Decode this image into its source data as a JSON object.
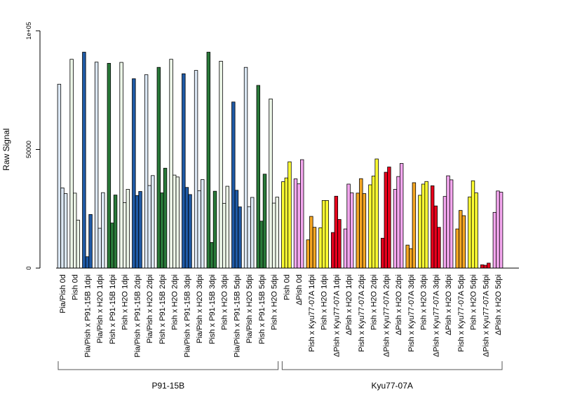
{
  "chart_data": {
    "type": "bar",
    "ylabel": "Raw Signal",
    "ylim": [
      0,
      100000
    ],
    "y_ticks": [
      {
        "value": 0,
        "label": "0"
      },
      {
        "value": 50000,
        "label": "50000"
      },
      {
        "value": 100000,
        "label": "1e+05"
      }
    ],
    "grid": false,
    "legend": "none",
    "categories": [
      {
        "label": "Pia/Pish 0d",
        "values": [
          77500,
          33800,
          31400
        ],
        "colors": [
          "#dce8f5",
          "#dce8f5",
          "#dce8f5"
        ]
      },
      {
        "label": "Pish 0d",
        "values": [
          88000,
          31600,
          20200
        ],
        "colors": [
          "#edf7e8",
          "#edf7e8",
          "#edf7e8"
        ]
      },
      {
        "label": "Pia/Pish x P91-15B 1dpi",
        "values": [
          91000,
          4800,
          22600
        ],
        "colors": [
          "#1f5aa6",
          "#1f5aa6",
          "#1f5aa6"
        ]
      },
      {
        "label": "Pia/Pish x H2O 1dpi",
        "values": [
          86800,
          16800,
          31800
        ],
        "colors": [
          "#dce8f5",
          "#dce8f5",
          "#dce8f5"
        ]
      },
      {
        "label": "Pish x P91-15B 1dpi",
        "values": [
          86300,
          19000,
          30800
        ],
        "colors": [
          "#2a7a3a",
          "#2a7a3a",
          "#2a7a3a"
        ]
      },
      {
        "label": "Pish x H2O 1dpi",
        "values": [
          86700,
          27600,
          33200
        ],
        "colors": [
          "#edf7e8",
          "#edf7e8",
          "#edf7e8"
        ]
      },
      {
        "label": "Pia/Pish x P91-15B 2dpi",
        "values": [
          79800,
          30600,
          32300
        ],
        "colors": [
          "#1f5aa6",
          "#1f5aa6",
          "#1f5aa6"
        ]
      },
      {
        "label": "Pia/Pish x H2O 2dpi",
        "values": [
          81500,
          34800,
          39000
        ],
        "colors": [
          "#dce8f5",
          "#dce8f5",
          "#dce8f5"
        ]
      },
      {
        "label": "Pish x P91-15B 2dpi",
        "values": [
          84600,
          31700,
          42100
        ],
        "colors": [
          "#2a7a3a",
          "#2a7a3a",
          "#2a7a3a"
        ]
      },
      {
        "label": "Pish x H2O 2dpi",
        "values": [
          88000,
          39200,
          38400
        ],
        "colors": [
          "#edf7e8",
          "#edf7e8",
          "#edf7e8"
        ]
      },
      {
        "label": "Pia/Pish x P91-15B 3dpi",
        "values": [
          81900,
          34000,
          31000
        ],
        "colors": [
          "#1f5aa6",
          "#1f5aa6",
          "#1f5aa6"
        ]
      },
      {
        "label": "Pia/Pish x H2O 3dpi",
        "values": [
          83300,
          32600,
          37300
        ],
        "colors": [
          "#dce8f5",
          "#dce8f5",
          "#dce8f5"
        ]
      },
      {
        "label": "Pish x P91-15B 3dpi",
        "values": [
          91000,
          10800,
          32400
        ],
        "colors": [
          "#2a7a3a",
          "#2a7a3a",
          "#2a7a3a"
        ]
      },
      {
        "label": "Pish x H2O 3dpi",
        "values": [
          87200,
          27300,
          34500
        ],
        "colors": [
          "#edf7e8",
          "#edf7e8",
          "#edf7e8"
        ]
      },
      {
        "label": "Pia/Pish x P91-15B 5dpi",
        "values": [
          70000,
          32800,
          25800
        ],
        "colors": [
          "#1f5aa6",
          "#1f5aa6",
          "#1f5aa6"
        ]
      },
      {
        "label": "Pia/Pish x H2O 5dpi",
        "values": [
          84600,
          25900,
          29800
        ],
        "colors": [
          "#dce8f5",
          "#dce8f5",
          "#dce8f5"
        ]
      },
      {
        "label": "Pish x P91-15B 5dpi",
        "values": [
          77000,
          19800,
          39600
        ],
        "colors": [
          "#2a7a3a",
          "#2a7a3a",
          "#2a7a3a"
        ]
      },
      {
        "label": "Pish x H2O 5dpi",
        "values": [
          71300,
          27400,
          29900
        ],
        "colors": [
          "#edf7e8",
          "#edf7e8",
          "#edf7e8"
        ]
      },
      {
        "label": "Pish 0d",
        "values": [
          36400,
          38000,
          44800
        ],
        "colors": [
          "#ffff33",
          "#ffff33",
          "#ffff33"
        ]
      },
      {
        "label": "ΔPish 0d",
        "values": [
          37600,
          35500,
          45700
        ],
        "colors": [
          "#f4a7ef",
          "#f4a7ef",
          "#f4a7ef"
        ]
      },
      {
        "label": "Pish x Kyu77-07A 1dpi",
        "values": [
          11900,
          21800,
          17200
        ],
        "colors": [
          "#f5a623",
          "#f5a623",
          "#f5a623"
        ]
      },
      {
        "label": "Pish x H2O 1dpi",
        "values": [
          17000,
          28500,
          28500
        ],
        "colors": [
          "#ffff33",
          "#ffff33",
          "#ffff33"
        ]
      },
      {
        "label": "ΔPish x Kyu77-07A 1dpi",
        "values": [
          15000,
          30300,
          20500
        ],
        "colors": [
          "#e8001c",
          "#e8001c",
          "#e8001c"
        ]
      },
      {
        "label": "ΔPish x H2O 1dpi",
        "values": [
          16500,
          35400,
          31700
        ],
        "colors": [
          "#f4a7ef",
          "#f4a7ef",
          "#f4a7ef"
        ]
      },
      {
        "label": "Pish x Kyu77-07A 2dpi",
        "values": [
          31600,
          37700,
          31400
        ],
        "colors": [
          "#f5a623",
          "#f5a623",
          "#f5a623"
        ]
      },
      {
        "label": "Pish x H2O 2dpi",
        "values": [
          35100,
          38800,
          46000
        ],
        "colors": [
          "#ffff33",
          "#ffff33",
          "#ffff33"
        ]
      },
      {
        "label": "ΔPish x Kyu77-07A 2dpi",
        "values": [
          12600,
          40400,
          42600
        ],
        "colors": [
          "#e8001c",
          "#e8001c",
          "#e8001c"
        ]
      },
      {
        "label": "ΔPish x H2O 2dpi",
        "values": [
          33200,
          38600,
          44100
        ],
        "colors": [
          "#f4a7ef",
          "#f4a7ef",
          "#f4a7ef"
        ]
      },
      {
        "label": "Pish x Kyu77-07A 3dpi",
        "values": [
          9700,
          8200,
          36000
        ],
        "colors": [
          "#f5a623",
          "#f5a623",
          "#f5a623"
        ]
      },
      {
        "label": "Pish x H2O 3dpi",
        "values": [
          30700,
          35400,
          36500
        ],
        "colors": [
          "#ffff33",
          "#ffff33",
          "#ffff33"
        ]
      },
      {
        "label": "ΔPish x Kyu77-07A 3dpi",
        "values": [
          34700,
          26200,
          17200
        ],
        "colors": [
          "#e8001c",
          "#e8001c",
          "#e8001c"
        ]
      },
      {
        "label": "ΔPish x H2O 3dpi",
        "values": [
          30200,
          38900,
          37200
        ],
        "colors": [
          "#f4a7ef",
          "#f4a7ef",
          "#f4a7ef"
        ]
      },
      {
        "label": "Pish x Kyu77-07A 5dpi",
        "values": [
          16500,
          24300,
          22100
        ],
        "colors": [
          "#f5a623",
          "#f5a623",
          "#f5a623"
        ]
      },
      {
        "label": "Pish x H2O 5dpi",
        "values": [
          30000,
          36800,
          31700
        ],
        "colors": [
          "#ffff33",
          "#ffff33",
          "#ffff33"
        ]
      },
      {
        "label": "ΔPish x Kyu77-07A 5dpi",
        "values": [
          1400,
          1200,
          2100
        ],
        "colors": [
          "#e8001c",
          "#e8001c",
          "#e8001c"
        ]
      },
      {
        "label": "ΔPish x H2O 5dpi",
        "values": [
          23500,
          32500,
          32000
        ],
        "colors": [
          "#f4a7ef",
          "#f4a7ef",
          "#f4a7ef"
        ]
      }
    ],
    "groups": [
      {
        "label": "P91-15B",
        "first": 0,
        "last": 17
      },
      {
        "label": "Kyu77-07A",
        "first": 18,
        "last": 35
      }
    ]
  }
}
